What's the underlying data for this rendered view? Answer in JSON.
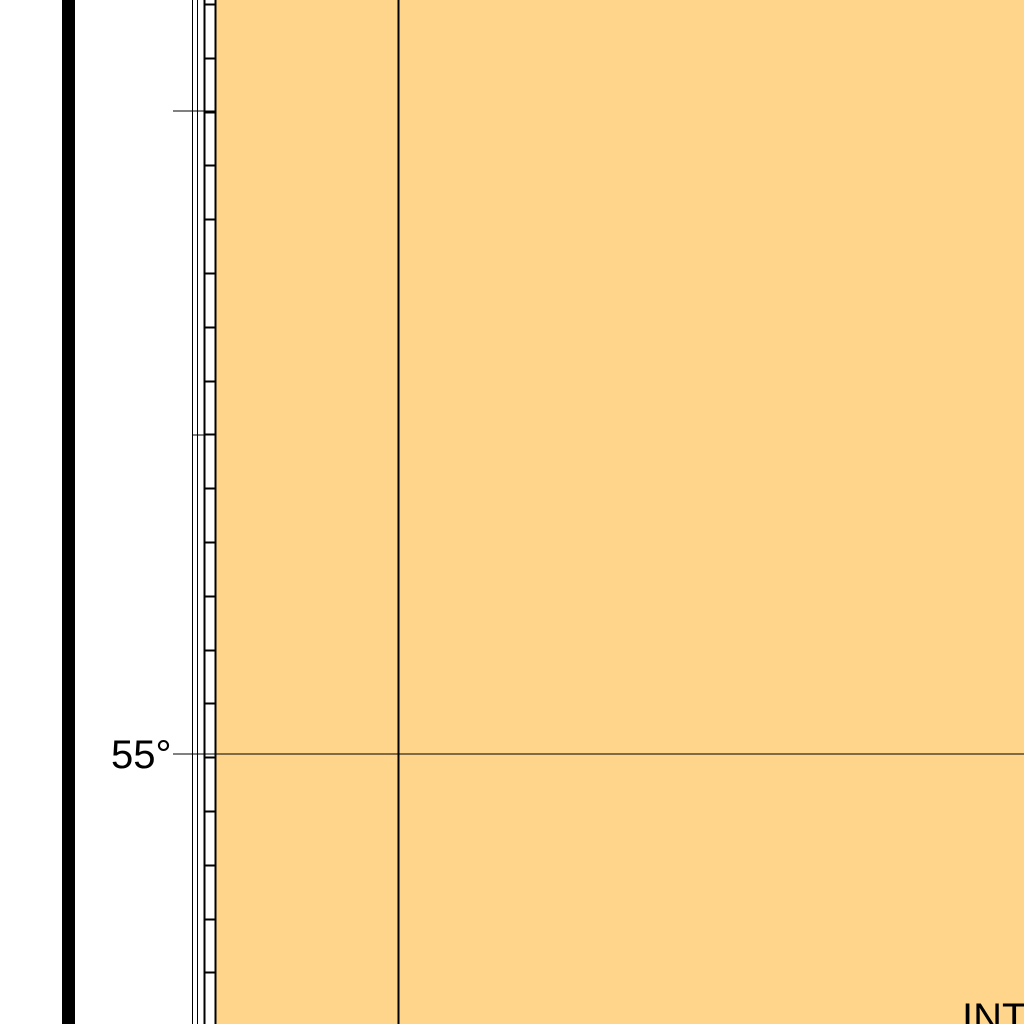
{
  "map": {
    "latitude_label": "55°",
    "partial_text": "INT",
    "colors": {
      "land": "#FFD58C",
      "frame_line": "#000000",
      "neatline": "#000000",
      "background": "#FFFFFF"
    }
  }
}
